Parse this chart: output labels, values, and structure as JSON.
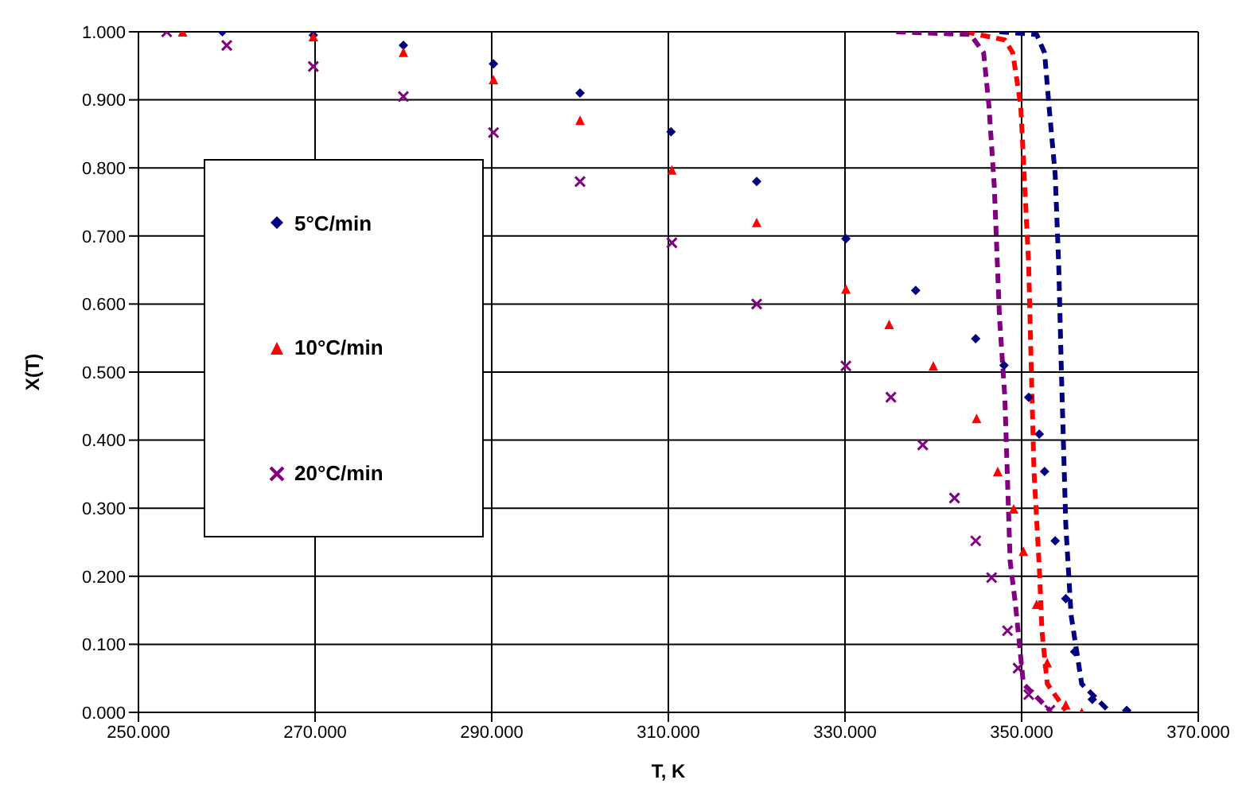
{
  "chart_data": {
    "type": "scatter",
    "xlabel": "T, K",
    "ylabel": "X(T)",
    "xlim": [
      250,
      370
    ],
    "xticks": [
      {
        "value": 250,
        "label": "250.000"
      },
      {
        "value": 270,
        "label": "270.000"
      },
      {
        "value": 290,
        "label": "290.000"
      },
      {
        "value": 310,
        "label": "310.000"
      },
      {
        "value": 330,
        "label": "330.000"
      },
      {
        "value": 350,
        "label": "350.000"
      },
      {
        "value": 370,
        "label": "370.000"
      }
    ],
    "ylim": [
      0,
      1
    ],
    "yticks": [
      {
        "value": 0,
        "label": "0.000"
      },
      {
        "value": 0.1,
        "label": "0.100"
      },
      {
        "value": 0.2,
        "label": "0.200"
      },
      {
        "value": 0.3,
        "label": "0.300"
      },
      {
        "value": 0.4,
        "label": "0.400"
      },
      {
        "value": 0.5,
        "label": "0.500"
      },
      {
        "value": 0.6,
        "label": "0.600"
      },
      {
        "value": 0.7,
        "label": "0.700"
      },
      {
        "value": 0.8,
        "label": "0.800"
      },
      {
        "value": 0.9,
        "label": "0.900"
      },
      {
        "value": 1.0,
        "label": "1.000"
      }
    ],
    "grid": true,
    "legend": "left",
    "series": [
      {
        "name": "5°C/min",
        "color": "#000080",
        "marker": "diamond",
        "x": [
          259.5,
          269.8,
          280,
          290.2,
          300,
          310.3,
          320,
          330.1,
          338,
          344.8,
          348,
          350.8,
          352,
          352.6,
          353.8,
          355,
          356,
          358,
          361.9
        ],
        "values": [
          1,
          0.995,
          0.98,
          0.953,
          0.91,
          0.853,
          0.78,
          0.696,
          0.62,
          0.549,
          0.51,
          0.463,
          0.409,
          0.354,
          0.252,
          0.167,
          0.089,
          0.019,
          0.003
        ]
      },
      {
        "name": "10°C/min",
        "color": "#ff0000",
        "marker": "triangle",
        "x": [
          255,
          269.8,
          280,
          290.2,
          300,
          310.4,
          320,
          330.1,
          335,
          340,
          344.9,
          347.3,
          349.1,
          350.2,
          351.7,
          352.9,
          355,
          356.8
        ],
        "values": [
          1,
          0.993,
          0.97,
          0.93,
          0.87,
          0.797,
          0.72,
          0.622,
          0.57,
          0.509,
          0.432,
          0.354,
          0.299,
          0.237,
          0.159,
          0.073,
          0.011,
          0
        ]
      },
      {
        "name": "20°C/min",
        "color": "#800080",
        "marker": "cross",
        "x": [
          253.2,
          260,
          269.8,
          280,
          290.2,
          300,
          310.4,
          320,
          330.1,
          335.2,
          338.8,
          342.4,
          344.8,
          346.6,
          348.4,
          349.6,
          350.8,
          353.2
        ],
        "values": [
          1,
          0.98,
          0.949,
          0.905,
          0.852,
          0.78,
          0.69,
          0.6,
          0.509,
          0.463,
          0.393,
          0.315,
          0.252,
          0.198,
          0.12,
          0.065,
          0.026,
          0.003
        ]
      },
      {
        "type": "line",
        "color": "#000080",
        "line_style": "dashed",
        "marker": "none",
        "x": [
          347.5,
          351.7,
          352.6,
          353.1,
          353.8,
          354.2,
          354.5,
          355,
          355.6,
          356.8,
          359.8
        ],
        "values": [
          1,
          0.996,
          0.969,
          0.891,
          0.79,
          0.657,
          0.502,
          0.276,
          0.143,
          0.042,
          0.003
        ]
      },
      {
        "type": "line",
        "color": "#ff0000",
        "line_style": "dashed",
        "marker": "none",
        "x": [
          343.6,
          348.1,
          349,
          349.9,
          350.2,
          350.8,
          351.1,
          351.4,
          352,
          352.3,
          352.9,
          355
        ],
        "values": [
          1,
          0.988,
          0.969,
          0.891,
          0.813,
          0.657,
          0.502,
          0.354,
          0.213,
          0.12,
          0.042,
          0.003
        ]
      },
      {
        "type": "line",
        "color": "#800080",
        "line_style": "dashed",
        "marker": "none",
        "x": [
          335.8,
          344.2,
          345.7,
          346.3,
          346.9,
          347.5,
          348.1,
          348.7,
          349.3,
          350.2,
          353.2
        ],
        "values": [
          1,
          0.996,
          0.969,
          0.891,
          0.774,
          0.579,
          0.463,
          0.222,
          0.159,
          0.042,
          0.003
        ]
      }
    ]
  }
}
